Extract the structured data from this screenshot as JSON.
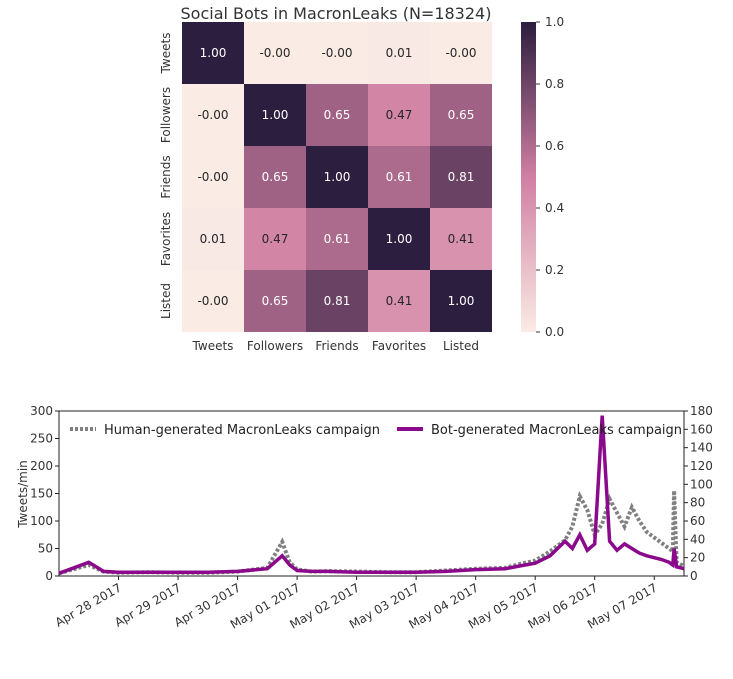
{
  "chart_data": [
    {
      "type": "heatmap",
      "title": "Social Bots in MacronLeaks (N=18324)",
      "labels": [
        "Tweets",
        "Followers",
        "Friends",
        "Favorites",
        "Listed"
      ],
      "matrix": [
        [
          1.0,
          -0.0,
          -0.0,
          0.01,
          -0.0
        ],
        [
          -0.0,
          1.0,
          0.65,
          0.47,
          0.65
        ],
        [
          -0.0,
          0.65,
          1.0,
          0.61,
          0.81
        ],
        [
          0.01,
          0.47,
          0.61,
          1.0,
          0.41
        ],
        [
          -0.0,
          0.65,
          0.81,
          0.41,
          1.0
        ]
      ],
      "cell_labels": [
        [
          "1.00",
          "-0.00",
          "-0.00",
          "0.01",
          "-0.00"
        ],
        [
          "-0.00",
          "1.00",
          "0.65",
          "0.47",
          "0.65"
        ],
        [
          "-0.00",
          "0.65",
          "1.00",
          "0.61",
          "0.81"
        ],
        [
          "0.01",
          "0.47",
          "0.61",
          "1.00",
          "0.41"
        ],
        [
          "-0.00",
          "0.65",
          "0.81",
          "0.41",
          "1.00"
        ]
      ],
      "colorbar": {
        "range": [
          0.0,
          1.0
        ],
        "ticks": [
          "0.0",
          "0.2",
          "0.4",
          "0.6",
          "0.8",
          "1.0"
        ]
      },
      "colors": {
        "low": "#faebe5",
        "mid": "#d07fa2",
        "high": "#2c1e3e"
      }
    },
    {
      "type": "line",
      "xlabel": "",
      "ylabel": "Tweets/min",
      "ylim": [
        0,
        300
      ],
      "ylim_right": [
        0,
        180
      ],
      "yticks": [
        "0",
        "50",
        "100",
        "150",
        "200",
        "250",
        "300"
      ],
      "yticks_right": [
        "0",
        "20",
        "40",
        "60",
        "80",
        "100",
        "120",
        "140",
        "160",
        "180"
      ],
      "x_tick_labels": [
        "Apr 28 2017",
        "Apr 29 2017",
        "Apr 30 2017",
        "May 01 2017",
        "May 02 2017",
        "May 03 2017",
        "May 04 2017",
        "May 05 2017",
        "May 06 2017",
        "May 07 2017"
      ],
      "legend_position": "top",
      "series": [
        {
          "name": "Human-generated MacronLeaks campaign",
          "axis": "left",
          "style": "dotted",
          "color": "#808080",
          "x": [
            "2017-04-27 12:00",
            "2017-04-28 00:00",
            "2017-04-28 06:00",
            "2017-04-28 12:00",
            "2017-04-29 00:00",
            "2017-04-29 12:00",
            "2017-04-30 00:00",
            "2017-04-30 12:00",
            "2017-05-01 00:00",
            "2017-05-01 06:00",
            "2017-05-01 09:00",
            "2017-05-01 12:00",
            "2017-05-01 18:00",
            "2017-05-02 00:00",
            "2017-05-02 12:00",
            "2017-05-03 00:00",
            "2017-05-03 12:00",
            "2017-05-04 00:00",
            "2017-05-04 12:00",
            "2017-05-05 00:00",
            "2017-05-05 06:00",
            "2017-05-05 12:00",
            "2017-05-05 18:00",
            "2017-05-06 00:00",
            "2017-05-06 03:00",
            "2017-05-06 06:00",
            "2017-05-06 09:00",
            "2017-05-06 12:00",
            "2017-05-06 15:00",
            "2017-05-06 18:00",
            "2017-05-06 21:00",
            "2017-05-07 00:00",
            "2017-05-07 03:00",
            "2017-05-07 06:00",
            "2017-05-07 09:00",
            "2017-05-07 12:00",
            "2017-05-07 15:00",
            "2017-05-07 18:00",
            "2017-05-07 19:30",
            "2017-05-07 20:00",
            "2017-05-07 21:00",
            "2017-05-08 00:00"
          ],
          "y": [
            5,
            20,
            8,
            6,
            7,
            6,
            6,
            8,
            15,
            62,
            25,
            12,
            8,
            9,
            8,
            7,
            7,
            10,
            13,
            15,
            22,
            28,
            45,
            65,
            90,
            145,
            120,
            75,
            95,
            140,
            115,
            90,
            125,
            100,
            80,
            70,
            60,
            50,
            45,
            155,
            25,
            18
          ]
        },
        {
          "name": "Bot-generated MacronLeaks campaign",
          "axis": "right",
          "style": "solid",
          "color": "#8b0a8b",
          "x": [
            "2017-04-27 12:00",
            "2017-04-28 00:00",
            "2017-04-28 06:00",
            "2017-04-28 12:00",
            "2017-04-29 00:00",
            "2017-04-29 12:00",
            "2017-04-30 00:00",
            "2017-04-30 12:00",
            "2017-05-01 00:00",
            "2017-05-01 06:00",
            "2017-05-01 09:00",
            "2017-05-01 12:00",
            "2017-05-01 18:00",
            "2017-05-02 00:00",
            "2017-05-02 12:00",
            "2017-05-03 00:00",
            "2017-05-03 12:00",
            "2017-05-04 00:00",
            "2017-05-04 12:00",
            "2017-05-05 00:00",
            "2017-05-05 06:00",
            "2017-05-05 12:00",
            "2017-05-05 18:00",
            "2017-05-06 00:00",
            "2017-05-06 03:00",
            "2017-05-06 06:00",
            "2017-05-06 09:00",
            "2017-05-06 12:00",
            "2017-05-06 15:00",
            "2017-05-06 18:00",
            "2017-05-06 21:00",
            "2017-05-07 00:00",
            "2017-05-07 03:00",
            "2017-05-07 06:00",
            "2017-05-07 09:00",
            "2017-05-07 12:00",
            "2017-05-07 15:00",
            "2017-05-07 18:00",
            "2017-05-07 19:30",
            "2017-05-07 20:00",
            "2017-05-07 21:00",
            "2017-05-08 00:00"
          ],
          "y": [
            3,
            15,
            5,
            4,
            4,
            4,
            4,
            5,
            8,
            22,
            12,
            6,
            5,
            5,
            4,
            4,
            4,
            5,
            7,
            8,
            11,
            14,
            22,
            38,
            30,
            45,
            28,
            35,
            175,
            38,
            28,
            35,
            30,
            25,
            22,
            20,
            18,
            15,
            12,
            30,
            10,
            8
          ]
        }
      ]
    }
  ]
}
